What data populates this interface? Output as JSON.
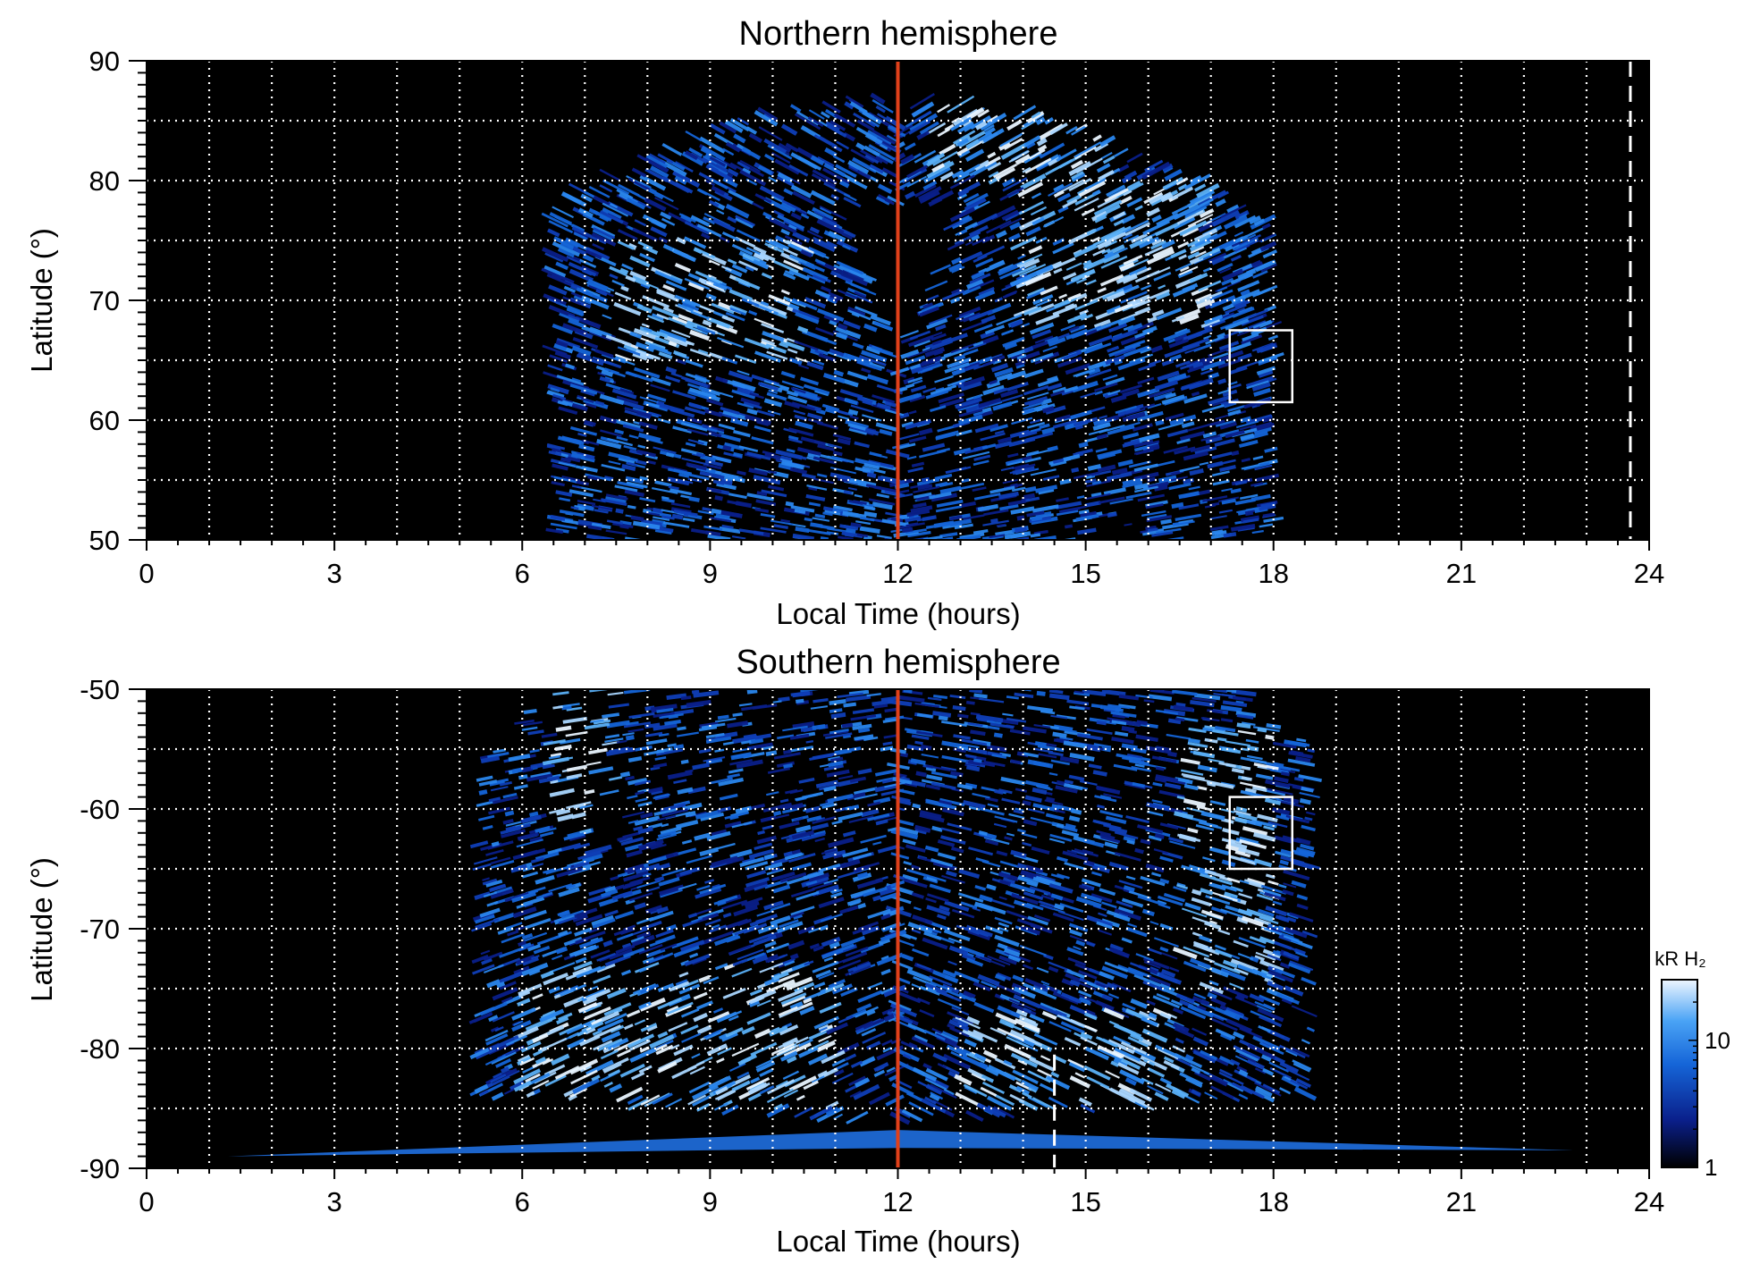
{
  "figure": {
    "colors": {
      "background": "#000000",
      "grid": "#ffffff",
      "noon_line": "#e0401a",
      "aurora_low": "#0a1f8a",
      "aurora_mid": "#1f78e6",
      "aurora_high": "#d8ecff",
      "marker_box": "#ffffff"
    }
  },
  "chart_data": [
    {
      "type": "heatmap",
      "title": "Northern hemisphere",
      "xlabel": "Local Time (hours)",
      "ylabel": "Latitude (°)",
      "xlim": [
        0,
        24
      ],
      "ylim": [
        50,
        90
      ],
      "x_ticks": [
        0,
        3,
        6,
        9,
        12,
        15,
        18,
        21,
        24
      ],
      "y_ticks": [
        50,
        60,
        70,
        80,
        90
      ],
      "x_tick_labels": [
        "0",
        "3",
        "6",
        "9",
        "12",
        "15",
        "18",
        "21",
        "24"
      ],
      "y_tick_labels": [
        "50",
        "60",
        "70",
        "80",
        "90"
      ],
      "grid": true,
      "grid_x_step": 1,
      "grid_y_step": 5,
      "noon_line_x": 12,
      "dashed_line_x": 23.7,
      "marker_box": {
        "x": [
          17.3,
          18.3
        ],
        "y": [
          61.5,
          67.5
        ]
      },
      "emission_coverage": {
        "x_range": [
          6.5,
          18.0
        ],
        "y_top": 87,
        "x_center": 12,
        "dark_wedge": {
          "x": [
            11,
            13
          ],
          "y": [
            65,
            78
          ]
        }
      },
      "bright_oval_features": [
        {
          "x": [
            7.5,
            10.5
          ],
          "y": [
            65,
            75
          ]
        },
        {
          "x": [
            14,
            17
          ],
          "y": [
            68,
            80
          ]
        },
        {
          "x": [
            12.5,
            15.5
          ],
          "y": [
            80,
            87
          ]
        }
      ]
    },
    {
      "type": "heatmap",
      "title": "Southern hemisphere",
      "xlabel": "Local Time (hours)",
      "ylabel": "Latitude (°)",
      "xlim": [
        0,
        24
      ],
      "ylim": [
        -90,
        -50
      ],
      "x_ticks": [
        0,
        3,
        6,
        9,
        12,
        15,
        18,
        21,
        24
      ],
      "y_ticks": [
        -90,
        -80,
        -70,
        -60,
        -50
      ],
      "x_tick_labels": [
        "0",
        "3",
        "6",
        "9",
        "12",
        "15",
        "18",
        "21",
        "24"
      ],
      "y_tick_labels": [
        "-90",
        "-80",
        "-70",
        "-60",
        "-50"
      ],
      "grid": true,
      "grid_x_step": 1,
      "grid_y_step": 5,
      "noon_line_x": 12,
      "dashed_line_x": 14.5,
      "dashed_line_y_range": [
        -90,
        -80.5
      ],
      "marker_box": {
        "x": [
          17.3,
          18.3
        ],
        "y": [
          -65,
          -59
        ]
      },
      "emission_coverage": {
        "x_range": [
          5.3,
          18.6
        ],
        "y_bottom": -86,
        "bottom_streak": {
          "x": [
            1.3,
            22.8
          ],
          "y": -89
        }
      },
      "bright_oval_features": [
        {
          "x": [
            6,
            11
          ],
          "y": [
            -85,
            -73
          ]
        },
        {
          "x": [
            13,
            16.5
          ],
          "y": [
            -85,
            -77
          ]
        },
        {
          "x": [
            16.5,
            18
          ],
          "y": [
            -75,
            -53
          ]
        },
        {
          "x": [
            6.5,
            7.5
          ],
          "y": [
            -62,
            -50
          ]
        }
      ]
    }
  ],
  "colorbar": {
    "label": "kR H₂",
    "ticks": [
      1,
      10
    ],
    "tick_labels": [
      "1",
      "10"
    ],
    "scale": "log",
    "range": [
      1,
      30
    ]
  }
}
